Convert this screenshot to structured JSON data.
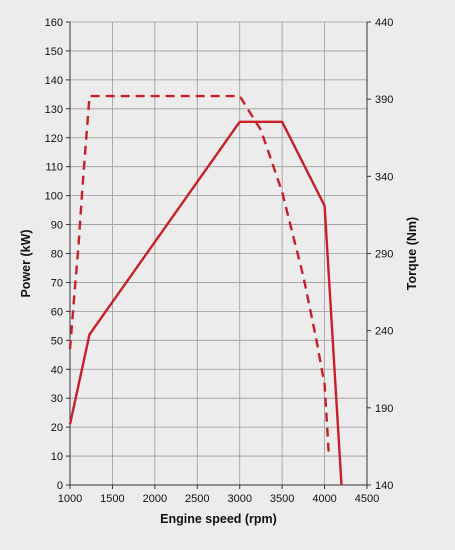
{
  "chart_data": {
    "type": "line",
    "title": "",
    "xlabel": "Engine speed (rpm)",
    "ylabel": "Power (kW)",
    "y2label": "Torque (Nm)",
    "xlim": [
      1000,
      4500
    ],
    "ylim": [
      0,
      160
    ],
    "y2lim": [
      140,
      440
    ],
    "xticks": [
      1000,
      1500,
      2000,
      2500,
      3000,
      3500,
      4000,
      4500
    ],
    "yticks": [
      0,
      10,
      20,
      30,
      40,
      50,
      60,
      70,
      80,
      90,
      100,
      110,
      120,
      130,
      140,
      150,
      160
    ],
    "y2ticks": [
      140,
      190,
      240,
      290,
      340,
      390,
      440
    ],
    "grid": true,
    "legend": "none",
    "series_color": "#c8202a",
    "series": [
      {
        "axis": "left",
        "style": "solid",
        "x": [
          1000,
          1230,
          3000,
          3500,
          4000,
          4200
        ],
        "y": [
          21,
          52,
          125.5,
          125.5,
          96.5,
          0
        ]
      },
      {
        "axis": "right",
        "style": "dashed",
        "x": [
          1000,
          1050,
          1100,
          1150,
          1230,
          1500,
          2000,
          2500,
          3000,
          3250,
          3500,
          3750,
          3900,
          4000,
          4050
        ],
        "y": [
          228,
          262,
          295,
          335,
          392,
          392,
          392,
          392,
          392,
          370,
          330,
          275,
          235,
          205,
          160
        ]
      }
    ]
  }
}
